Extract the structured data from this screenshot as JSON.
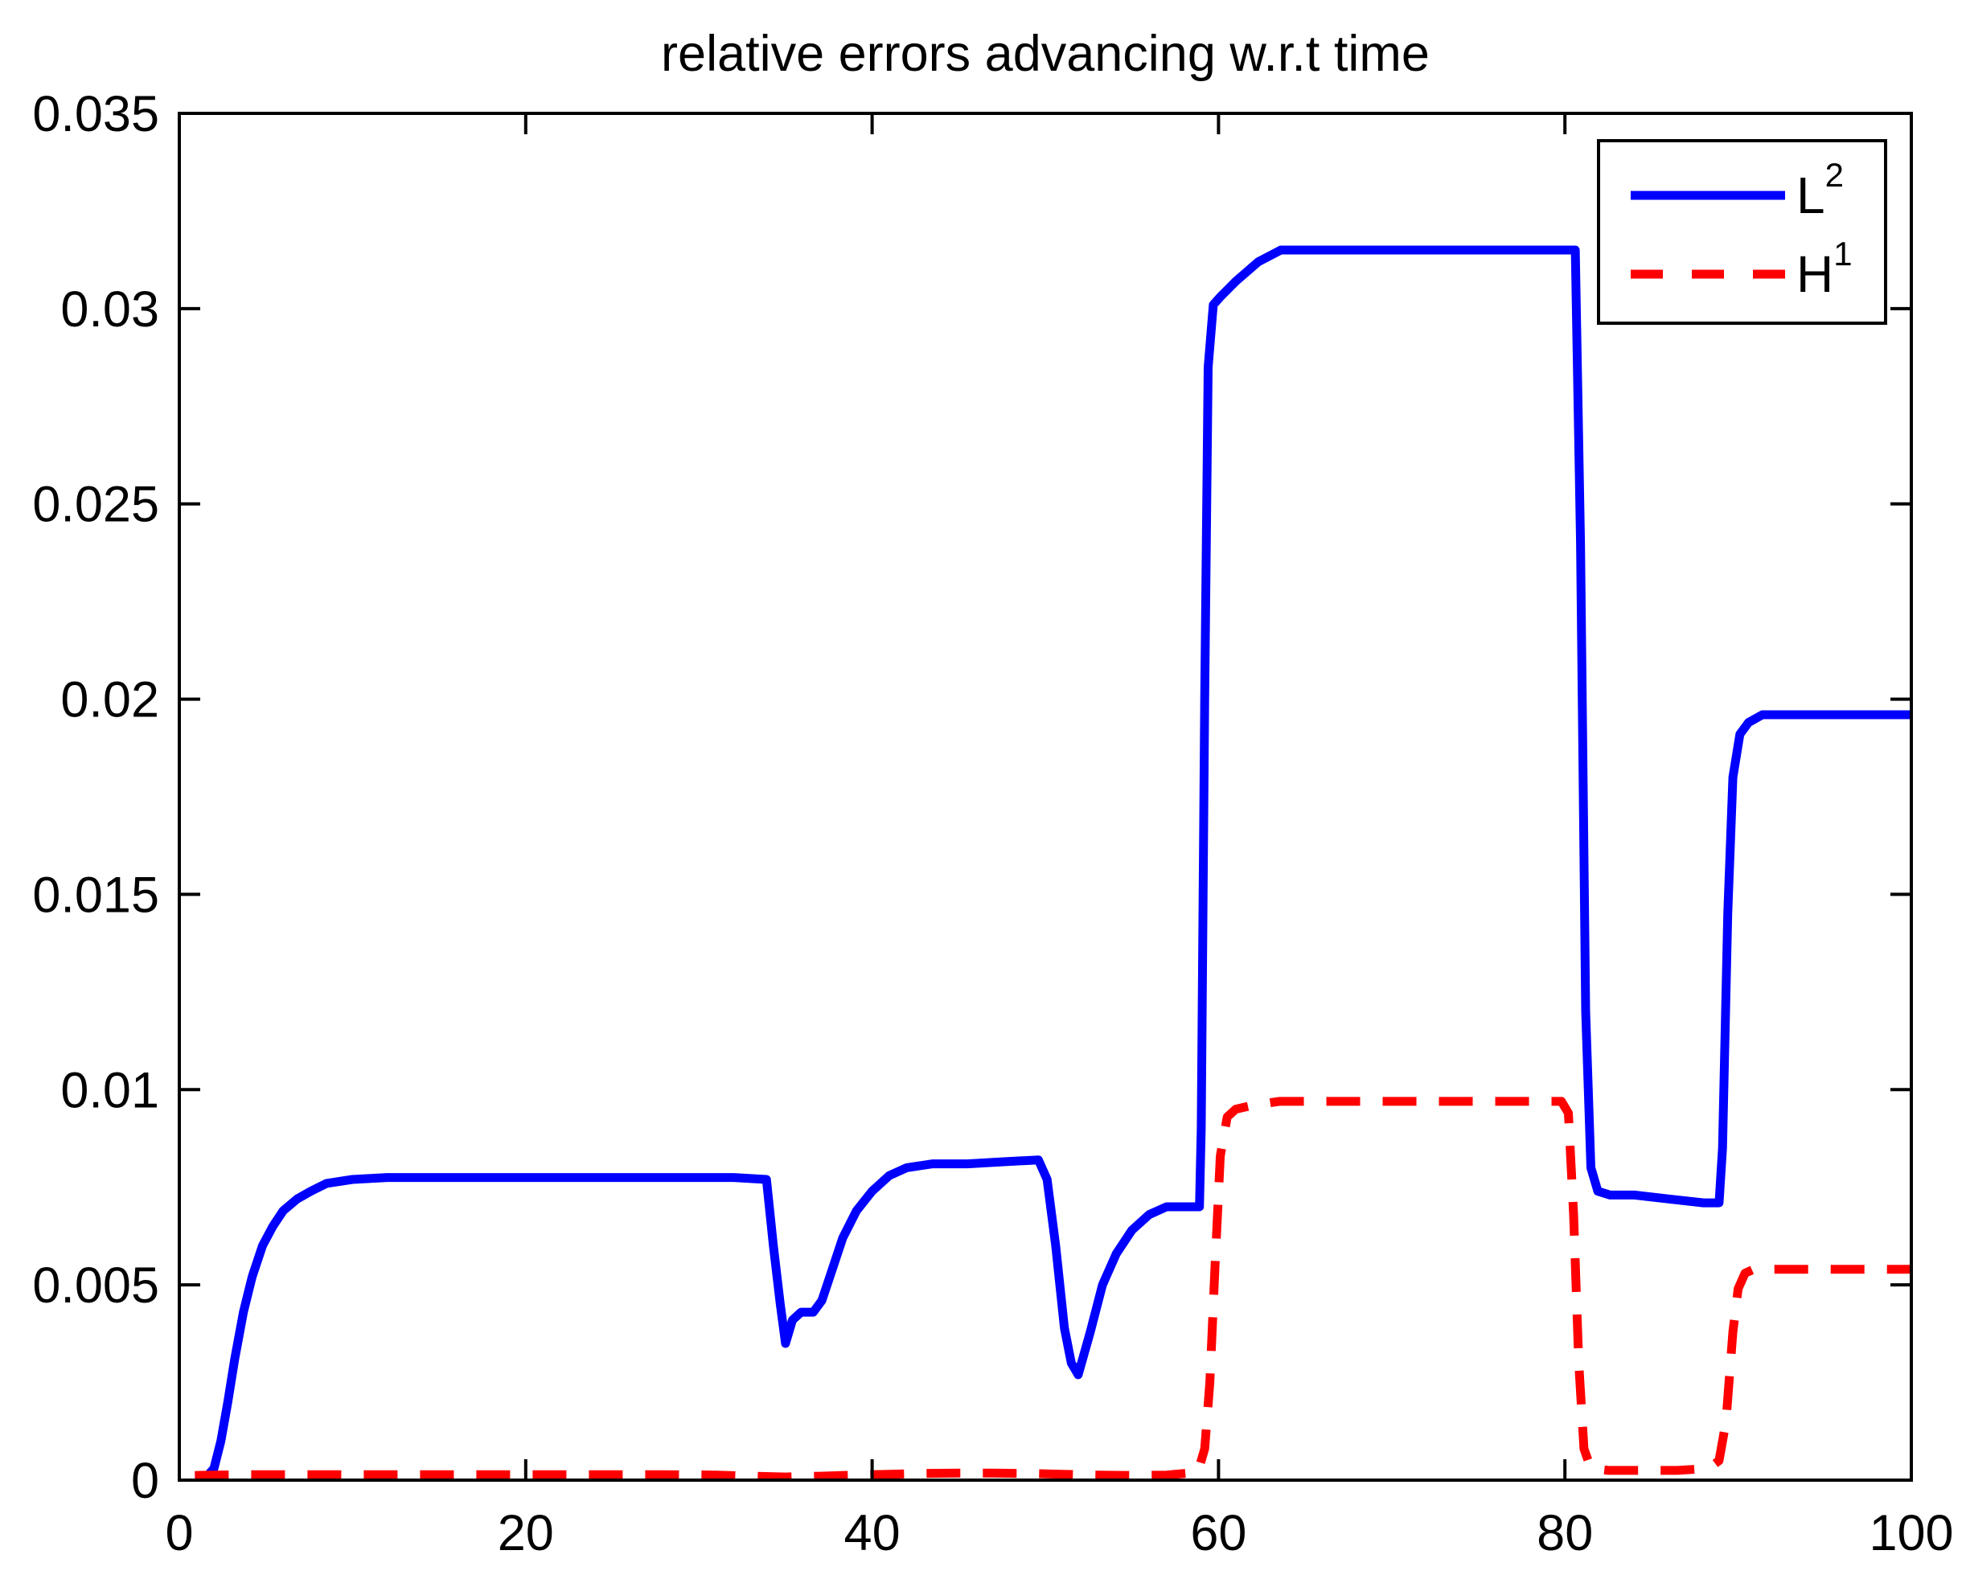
{
  "figure": {
    "background": "#ffffff",
    "axis_color": "#000000"
  },
  "chart_data": {
    "type": "line",
    "title": "relative errors advancing w.r.t time",
    "xlabel": "",
    "ylabel": "",
    "xlim": [
      0,
      100
    ],
    "ylim": [
      0,
      0.035
    ],
    "grid": false,
    "legend_position": "upper right",
    "x_ticks": [
      0,
      20,
      40,
      60,
      80,
      100
    ],
    "x_tick_labels": [
      "0",
      "20",
      "40",
      "60",
      "80",
      "100"
    ],
    "y_ticks": [
      0,
      0.005,
      0.01,
      0.015,
      0.02,
      0.025,
      0.03,
      0.035
    ],
    "y_tick_labels": [
      "0",
      "0.005",
      "0.01",
      "0.015",
      "0.02",
      "0.025",
      "0.03",
      "0.035"
    ],
    "series": [
      {
        "name": "L2",
        "label_base": "L",
        "label_sup": "2",
        "color": "#0000ff",
        "style": "solid",
        "points": [
          [
            0.9,
            0.0001
          ],
          [
            1.6,
            0.0001
          ],
          [
            2.0,
            0.0003
          ],
          [
            2.4,
            0.001
          ],
          [
            2.8,
            0.002
          ],
          [
            3.2,
            0.0031
          ],
          [
            3.7,
            0.0043
          ],
          [
            4.2,
            0.0052
          ],
          [
            4.8,
            0.006
          ],
          [
            5.4,
            0.0065
          ],
          [
            6.0,
            0.0069
          ],
          [
            6.8,
            0.0072
          ],
          [
            7.6,
            0.0074
          ],
          [
            8.5,
            0.0076
          ],
          [
            10,
            0.0077
          ],
          [
            12,
            0.00775
          ],
          [
            16,
            0.00775
          ],
          [
            20,
            0.00775
          ],
          [
            24,
            0.00775
          ],
          [
            28,
            0.00775
          ],
          [
            32,
            0.00775
          ],
          [
            33.9,
            0.0077
          ],
          [
            34.3,
            0.006
          ],
          [
            34.7,
            0.0045
          ],
          [
            35.0,
            0.0035
          ],
          [
            35.4,
            0.0041
          ],
          [
            35.9,
            0.0043
          ],
          [
            36.6,
            0.0043
          ],
          [
            37.1,
            0.0046
          ],
          [
            37.7,
            0.0054
          ],
          [
            38.3,
            0.0062
          ],
          [
            39.1,
            0.0069
          ],
          [
            40,
            0.0074
          ],
          [
            41,
            0.0078
          ],
          [
            42,
            0.008
          ],
          [
            43.5,
            0.0081
          ],
          [
            45.5,
            0.0081
          ],
          [
            47.5,
            0.00815
          ],
          [
            49.6,
            0.0082
          ],
          [
            50.1,
            0.0077
          ],
          [
            50.6,
            0.006
          ],
          [
            51.1,
            0.0039
          ],
          [
            51.5,
            0.003
          ],
          [
            51.9,
            0.0027
          ],
          [
            52.6,
            0.0038
          ],
          [
            53.3,
            0.005
          ],
          [
            54.1,
            0.0058
          ],
          [
            55,
            0.0064
          ],
          [
            56,
            0.0068
          ],
          [
            57,
            0.007
          ],
          [
            58.9,
            0.007
          ],
          [
            59.0,
            0.009
          ],
          [
            59.2,
            0.02
          ],
          [
            59.4,
            0.0285
          ],
          [
            59.7,
            0.0301
          ],
          [
            60.1,
            0.0303
          ],
          [
            61,
            0.0307
          ],
          [
            62.3,
            0.0312
          ],
          [
            63.6,
            0.0315
          ],
          [
            66,
            0.0315
          ],
          [
            70,
            0.0315
          ],
          [
            74,
            0.0315
          ],
          [
            78,
            0.0315
          ],
          [
            80.6,
            0.0315
          ],
          [
            80.9,
            0.024
          ],
          [
            81.2,
            0.012
          ],
          [
            81.5,
            0.008
          ],
          [
            81.9,
            0.0074
          ],
          [
            82.6,
            0.0073
          ],
          [
            84,
            0.0073
          ],
          [
            86,
            0.0072
          ],
          [
            88,
            0.0071
          ],
          [
            88.9,
            0.0071
          ],
          [
            89.1,
            0.0085
          ],
          [
            89.4,
            0.0145
          ],
          [
            89.7,
            0.018
          ],
          [
            90.1,
            0.0191
          ],
          [
            90.6,
            0.0194
          ],
          [
            91.4,
            0.0196
          ],
          [
            93,
            0.0196
          ],
          [
            95,
            0.0196
          ],
          [
            97,
            0.0196
          ],
          [
            100,
            0.0196
          ]
        ]
      },
      {
        "name": "H1",
        "label_base": "H",
        "label_sup": "1",
        "color": "#ff0000",
        "style": "dashed",
        "points": [
          [
            0.9,
            0.00012
          ],
          [
            2,
            0.00013
          ],
          [
            4,
            0.00014
          ],
          [
            8,
            0.00014
          ],
          [
            12,
            0.00014
          ],
          [
            16,
            0.00014
          ],
          [
            20,
            0.00014
          ],
          [
            24,
            0.00014
          ],
          [
            28,
            0.00014
          ],
          [
            31,
            0.00013
          ],
          [
            33,
            0.0001
          ],
          [
            35,
            8e-05
          ],
          [
            37,
            0.0001
          ],
          [
            39,
            0.00013
          ],
          [
            41,
            0.00015
          ],
          [
            43,
            0.00017
          ],
          [
            45,
            0.00018
          ],
          [
            47,
            0.00018
          ],
          [
            49,
            0.00017
          ],
          [
            51,
            0.00015
          ],
          [
            53,
            0.00013
          ],
          [
            55,
            0.00012
          ],
          [
            57,
            0.00013
          ],
          [
            58.8,
            0.0002
          ],
          [
            59.2,
            0.0008
          ],
          [
            59.5,
            0.0025
          ],
          [
            59.8,
            0.0055
          ],
          [
            60.1,
            0.0083
          ],
          [
            60.5,
            0.0093
          ],
          [
            61,
            0.0095
          ],
          [
            62,
            0.0096
          ],
          [
            63.5,
            0.0097
          ],
          [
            66,
            0.0097
          ],
          [
            69,
            0.0097
          ],
          [
            72,
            0.0097
          ],
          [
            75,
            0.0097
          ],
          [
            78,
            0.0097
          ],
          [
            79.8,
            0.0097
          ],
          [
            80.2,
            0.0094
          ],
          [
            80.5,
            0.0068
          ],
          [
            80.8,
            0.003
          ],
          [
            81.1,
            0.0008
          ],
          [
            81.5,
            0.0003
          ],
          [
            82.5,
            0.00025
          ],
          [
            84.5,
            0.00025
          ],
          [
            86.5,
            0.00025
          ],
          [
            88.3,
            0.0003
          ],
          [
            88.9,
            0.0005
          ],
          [
            89.3,
            0.0015
          ],
          [
            89.7,
            0.0038
          ],
          [
            90.0,
            0.0049
          ],
          [
            90.4,
            0.0053
          ],
          [
            90.9,
            0.0054
          ],
          [
            92.5,
            0.0054
          ],
          [
            94.5,
            0.0054
          ],
          [
            96.5,
            0.0054
          ],
          [
            98.5,
            0.0054
          ],
          [
            100,
            0.0054
          ]
        ]
      }
    ]
  }
}
